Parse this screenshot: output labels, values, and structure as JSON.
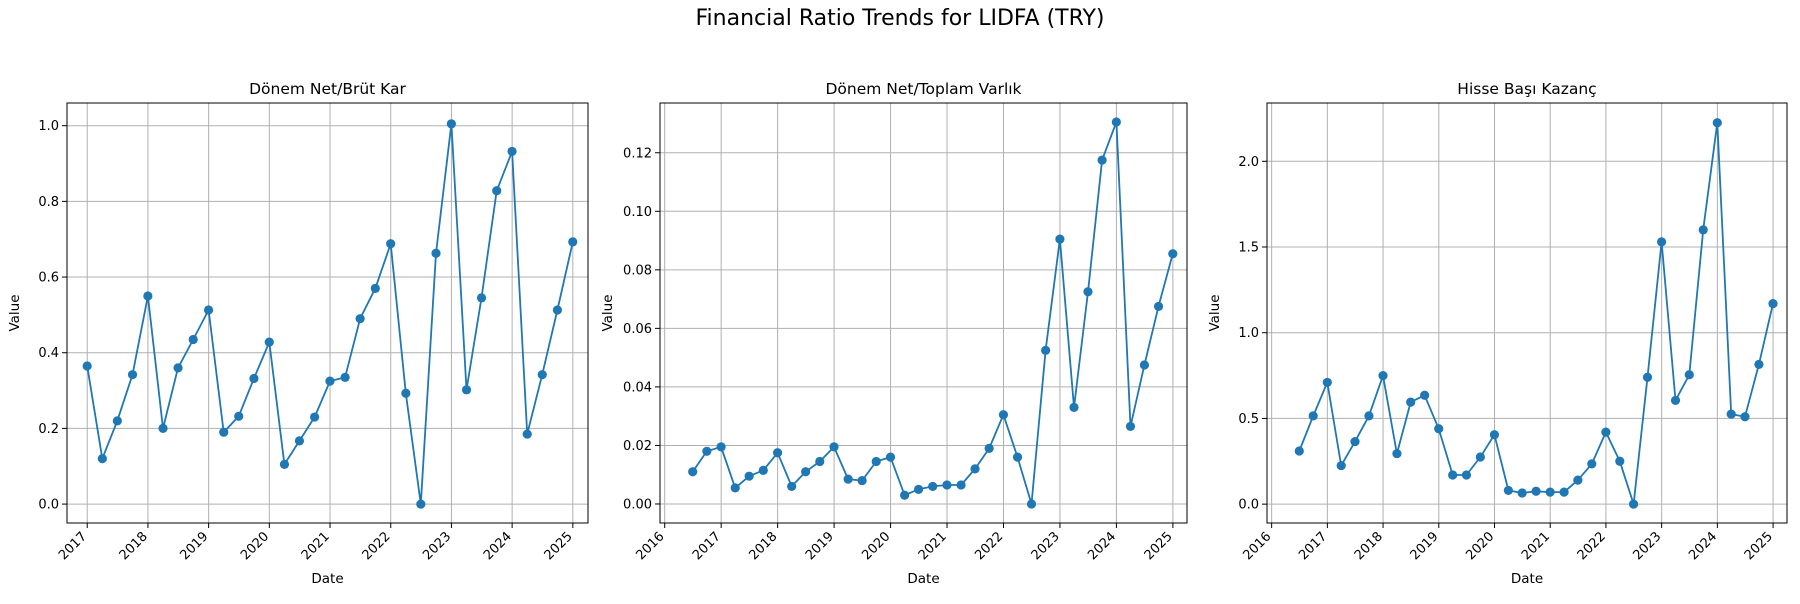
{
  "figure": {
    "title": "Financial Ratio Trends for LIDFA (TRY)"
  },
  "style": {
    "line_color": "#1f77b4",
    "grid_color": "#b0b0b0"
  },
  "chart_data": [
    {
      "type": "line",
      "title": "Dönem Net/Brüt Kar",
      "xlabel": "Date",
      "ylabel": "Value",
      "xlim": [
        "2016-09",
        "2025-04"
      ],
      "ylim": [
        -0.05,
        1.06
      ],
      "xticks": [
        "2017",
        "2018",
        "2019",
        "2020",
        "2021",
        "2022",
        "2023",
        "2024",
        "2025"
      ],
      "yticks": [
        0.0,
        0.2,
        0.4,
        0.6,
        0.8,
        1.0
      ],
      "ytick_labels": [
        "0.0",
        "0.2",
        "0.4",
        "0.6",
        "0.8",
        "1.0"
      ],
      "grid": true,
      "series": [
        {
          "x": [
            "2016-12-31",
            "2017-03-31",
            "2017-06-30",
            "2017-09-30",
            "2017-12-31",
            "2018-03-31",
            "2018-06-30",
            "2018-09-30",
            "2018-12-31",
            "2019-03-31",
            "2019-06-30",
            "2019-09-30",
            "2019-12-31",
            "2020-03-31",
            "2020-06-30",
            "2020-09-30",
            "2020-12-31",
            "2021-03-31",
            "2021-06-30",
            "2021-09-30",
            "2021-12-31",
            "2022-03-31",
            "2022-06-30",
            "2022-09-30",
            "2022-12-31",
            "2023-03-31",
            "2023-06-30",
            "2023-09-30",
            "2023-12-31",
            "2024-03-31",
            "2024-06-30",
            "2024-09-30",
            "2024-12-31"
          ],
          "values": [
            0.365,
            0.12,
            0.22,
            0.342,
            0.55,
            0.2,
            0.36,
            0.435,
            0.513,
            0.19,
            0.232,
            0.332,
            0.428,
            0.105,
            0.167,
            0.23,
            0.325,
            0.335,
            0.49,
            0.57,
            0.688,
            0.293,
            0.0,
            0.663,
            1.005,
            0.302,
            0.545,
            0.828,
            0.932,
            0.185,
            0.342,
            0.513,
            0.693
          ]
        }
      ]
    },
    {
      "type": "line",
      "title": "Dönem Net/Toplam Varlık",
      "xlabel": "Date",
      "ylabel": "Value",
      "xlim": [
        "2015-12",
        "2025-04"
      ],
      "ylim": [
        -0.0065,
        0.137
      ],
      "xticks": [
        "2016",
        "2017",
        "2018",
        "2019",
        "2020",
        "2021",
        "2022",
        "2023",
        "2024",
        "2025"
      ],
      "yticks": [
        0.0,
        0.02,
        0.04,
        0.06,
        0.08,
        0.1,
        0.12
      ],
      "ytick_labels": [
        "0.00",
        "0.02",
        "0.04",
        "0.06",
        "0.08",
        "0.10",
        "0.12"
      ],
      "grid": true,
      "series": [
        {
          "x": [
            "2016-06-30",
            "2016-09-30",
            "2016-12-31",
            "2017-03-31",
            "2017-06-30",
            "2017-09-30",
            "2017-12-31",
            "2018-03-31",
            "2018-06-30",
            "2018-09-30",
            "2018-12-31",
            "2019-03-31",
            "2019-06-30",
            "2019-09-30",
            "2019-12-31",
            "2020-03-31",
            "2020-06-30",
            "2020-09-30",
            "2020-12-31",
            "2021-03-31",
            "2021-06-30",
            "2021-09-30",
            "2021-12-31",
            "2022-03-31",
            "2022-06-30",
            "2022-09-30",
            "2022-12-31",
            "2023-03-31",
            "2023-06-30",
            "2023-09-30",
            "2023-12-31",
            "2024-03-31",
            "2024-06-30",
            "2024-09-30",
            "2024-12-31"
          ],
          "values": [
            0.011,
            0.018,
            0.0195,
            0.0055,
            0.0095,
            0.0115,
            0.0175,
            0.006,
            0.011,
            0.0145,
            0.0195,
            0.0085,
            0.008,
            0.0145,
            0.016,
            0.003,
            0.005,
            0.006,
            0.0065,
            0.0065,
            0.012,
            0.019,
            0.0305,
            0.016,
            0.0,
            0.0525,
            0.0905,
            0.033,
            0.0725,
            0.1175,
            0.1305,
            0.0265,
            0.0475,
            0.0675,
            0.0855
          ]
        }
      ]
    },
    {
      "type": "line",
      "title": "Hisse Başı Kazanç",
      "xlabel": "Date",
      "ylabel": "Value",
      "xlim": [
        "2015-12",
        "2025-04"
      ],
      "ylim": [
        -0.11,
        2.34
      ],
      "xticks": [
        "2016",
        "2017",
        "2018",
        "2019",
        "2020",
        "2021",
        "2022",
        "2023",
        "2024",
        "2025"
      ],
      "yticks": [
        0.0,
        0.5,
        1.0,
        1.5,
        2.0
      ],
      "ytick_labels": [
        "0.0",
        "0.5",
        "1.0",
        "1.5",
        "2.0"
      ],
      "grid": true,
      "series": [
        {
          "x": [
            "2016-06-30",
            "2016-09-30",
            "2016-12-31",
            "2017-03-31",
            "2017-06-30",
            "2017-09-30",
            "2017-12-31",
            "2018-03-31",
            "2018-06-30",
            "2018-09-30",
            "2018-12-31",
            "2019-03-31",
            "2019-06-30",
            "2019-09-30",
            "2019-12-31",
            "2020-03-31",
            "2020-06-30",
            "2020-09-30",
            "2020-12-31",
            "2021-03-31",
            "2021-06-30",
            "2021-09-30",
            "2021-12-31",
            "2022-03-31",
            "2022-06-30",
            "2022-09-30",
            "2022-12-31",
            "2023-03-31",
            "2023-06-30",
            "2023-09-30",
            "2023-12-31",
            "2024-03-31",
            "2024-06-30",
            "2024-09-30",
            "2024-12-31"
          ],
          "values": [
            0.31,
            0.515,
            0.71,
            0.225,
            0.365,
            0.515,
            0.75,
            0.295,
            0.595,
            0.635,
            0.44,
            0.17,
            0.17,
            0.275,
            0.405,
            0.08,
            0.065,
            0.075,
            0.07,
            0.07,
            0.14,
            0.235,
            0.42,
            0.25,
            0.0,
            0.74,
            1.53,
            0.605,
            0.755,
            1.6,
            2.225,
            0.525,
            0.51,
            0.815,
            1.17
          ]
        }
      ]
    }
  ]
}
